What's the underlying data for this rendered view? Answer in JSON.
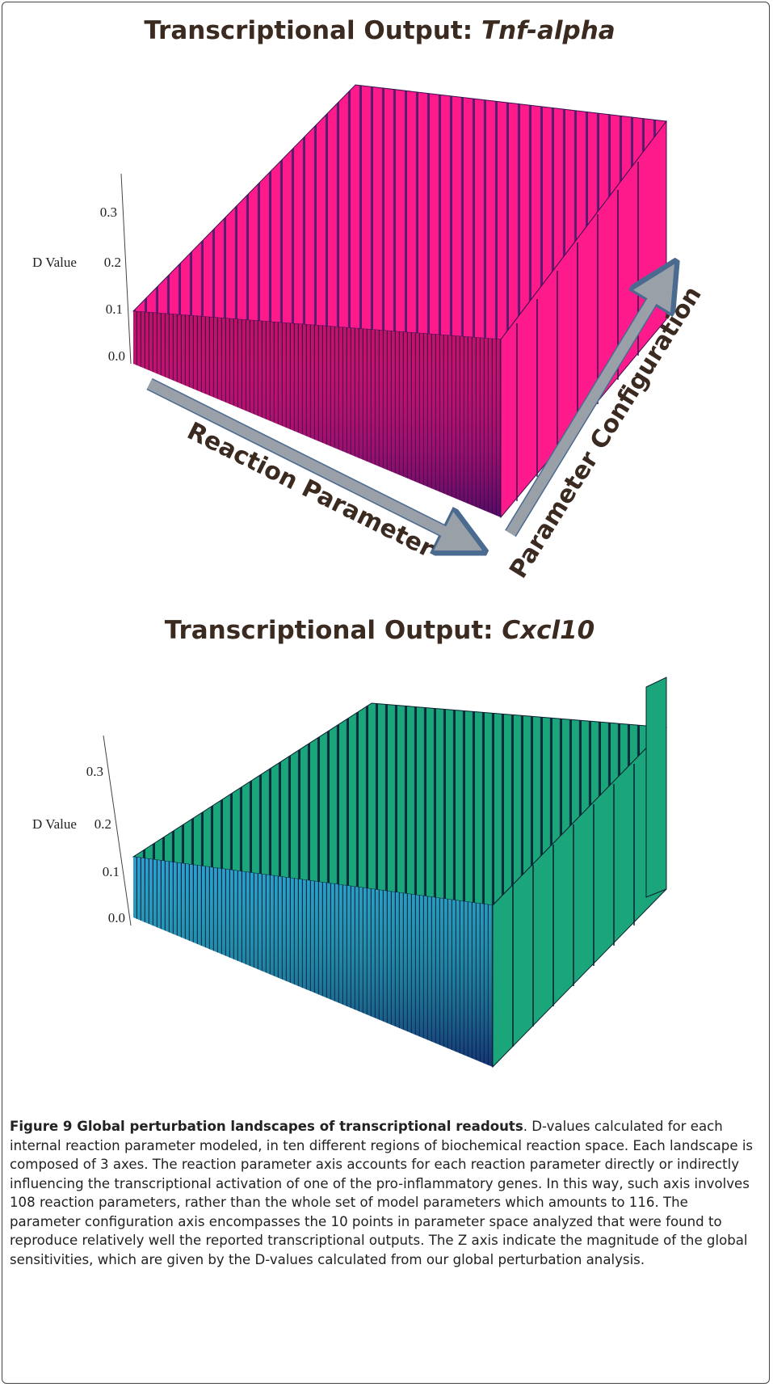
{
  "figure": {
    "panels": [
      {
        "title": "Transcriptional Output:",
        "gene": "Tnf-alpha",
        "z_label": "D Value",
        "z_ticks": [
          "0.3",
          "0.2",
          "0.1",
          "0.0"
        ],
        "x_axis": "Reaction Parameter",
        "y_axis": "Parameter Configuration"
      },
      {
        "title": "Transcriptional Output:",
        "gene": "Cxcl10",
        "z_label": "D Value",
        "z_ticks": [
          "0.3",
          "0.2",
          "0.1",
          "0.0"
        ]
      }
    ],
    "caption": {
      "label": "Figure 9 Global perturbation landscapes of transcriptional readouts",
      "text": ". D-values calculated for each internal reaction parameter modeled, in ten different regions of biochemical reaction space. Each landscape is composed of 3 axes. The reaction parameter axis accounts for each reaction parameter directly or indirectly influencing the transcriptional activation of one of the pro-inflammatory genes. In this way, such axis involves 108 reaction parameters, rather than the whole set of model parameters which amounts to 116. The parameter configuration axis encompasses the 10 points in parameter space analyzed that were found to reproduce relatively well the reported transcriptional outputs. The Z axis indicate the magnitude of the global sensitivities, which are given by the D-values calculated from our global perturbation analysis."
    }
  }
}
